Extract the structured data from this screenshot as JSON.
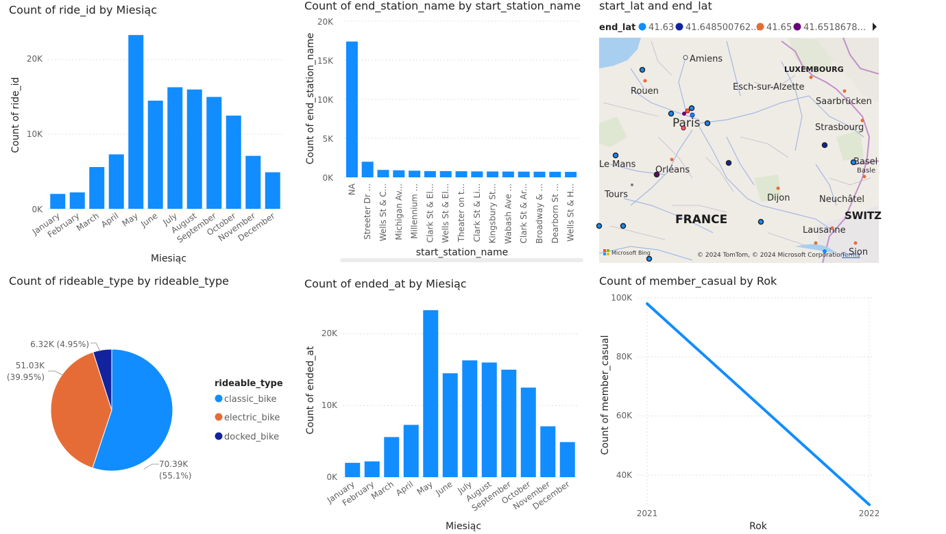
{
  "colors": {
    "bar": "#118DFF",
    "classic": "#118DFF",
    "electric": "#E66C37",
    "docked": "#12239E",
    "purple": "#6B007B",
    "grid": "#e1dfdd"
  },
  "ride_chart": {
    "title": "Count of ride_id by Miesiąc",
    "xlabel": "Miesiąc",
    "ylabel": "Count of ride_id",
    "yticks": [
      "0K",
      "10K",
      "20K"
    ]
  },
  "station_chart": {
    "title": "Count of end_station_name by start_station_name",
    "xlabel": "start_station_name",
    "ylabel": "Count of end_station_name",
    "yticks": [
      "0K",
      "5K",
      "10K",
      "15K",
      "20K"
    ]
  },
  "map": {
    "title": "start_lat and end_lat",
    "legend_title": "end_lat",
    "legend_items": [
      {
        "label": "41.63",
        "color": "#118DFF"
      },
      {
        "label": "41.648500762...",
        "color": "#12239E"
      },
      {
        "label": "41.65",
        "color": "#E66C37"
      },
      {
        "label": "41.6518678...",
        "color": "#6B007B"
      }
    ],
    "places": {
      "amiens": "Amiens",
      "rouen": "Rouen",
      "esch": "Esch-sur-Alzette",
      "luxembourg": "LUXEMBOURG",
      "saarbrucken": "Saarbrücken",
      "paris": "Paris",
      "strasbourg": "Strasbourg",
      "lemans": "Le Mans",
      "orleans": "Orléans",
      "basel": "Basel",
      "basle": "Basle",
      "tours": "Tours",
      "dijon": "Dijon",
      "neuchatel": "Neuchâtel",
      "france": "FRANCE",
      "switz": "SWITZ",
      "lausanne": "Lausanne",
      "sion": "Sion"
    },
    "bing": "Microsoft Bing",
    "copyright": "© 2024 TomTom, © 2024 Microsoft Corporation",
    "terms": "Terms"
  },
  "pie_chart": {
    "title": "Count of rideable_type by rideable_type",
    "legend_title": "rideable_type",
    "labels": {
      "classic_1": "70.39K",
      "classic_2": "(55.1%)",
      "electric_1": "51.03K",
      "electric_2": "(39.95%)",
      "docked": "6.32K (4.95%)"
    }
  },
  "ended_chart": {
    "title": "Count of ended_at by Miesiąc",
    "xlabel": "Miesiąc",
    "ylabel": "Count of ended_at",
    "yticks": [
      "0K",
      "10K",
      "20K"
    ]
  },
  "line_chart": {
    "title": "Count of member_casual by Rok",
    "xlabel": "Rok",
    "ylabel": "Count of member_casual",
    "yticks": [
      "40K",
      "60K",
      "80K",
      "100K"
    ]
  },
  "chart_data": [
    {
      "type": "bar",
      "title": "Count of ride_id by Miesiąc",
      "xlabel": "Miesiąc",
      "ylabel": "Count of ride_id",
      "categories": [
        "January",
        "February",
        "March",
        "April",
        "May",
        "June",
        "July",
        "August",
        "September",
        "October",
        "November",
        "December"
      ],
      "values": [
        2000,
        2200,
        5600,
        7300,
        23300,
        14500,
        16300,
        16000,
        15000,
        12500,
        7100,
        4900
      ],
      "ylim": [
        0,
        23500
      ]
    },
    {
      "type": "bar",
      "title": "Count of end_station_name by start_station_name",
      "xlabel": "start_station_name",
      "ylabel": "Count of end_station_name",
      "categories": [
        "NA",
        "Streeter Dr ...",
        "Wells St & C...",
        "Michigan Av...",
        "Millennium ...",
        "Clark St & El...",
        "Wells St & El...",
        "Theater on t...",
        "Clark St & Li...",
        "Kingsbury St...",
        "Wabash Ave ...",
        "Clark St & Ar...",
        "Broadway & ...",
        "Dearborn St ...",
        "Wells St & H..."
      ],
      "values": [
        17400,
        2000,
        950,
        900,
        850,
        800,
        800,
        780,
        760,
        750,
        740,
        730,
        720,
        710,
        700
      ],
      "ylim": [
        0,
        20000
      ]
    },
    {
      "type": "pie",
      "title": "Count of rideable_type by rideable_type",
      "categories": [
        "classic_bike",
        "electric_bike",
        "docked_bike"
      ],
      "values": [
        70390,
        51030,
        6320
      ],
      "percentages": [
        55.1,
        39.95,
        4.95
      ],
      "legend": "right"
    },
    {
      "type": "bar",
      "title": "Count of ended_at by Miesiąc",
      "xlabel": "Miesiąc",
      "ylabel": "Count of ended_at",
      "categories": [
        "January",
        "February",
        "March",
        "April",
        "May",
        "June",
        "July",
        "August",
        "September",
        "October",
        "November",
        "December"
      ],
      "values": [
        2000,
        2200,
        5600,
        7300,
        23300,
        14500,
        16300,
        16000,
        15000,
        12500,
        7100,
        4900
      ],
      "ylim": [
        0,
        23500
      ]
    },
    {
      "type": "line",
      "title": "Count of member_casual by Rok",
      "xlabel": "Rok",
      "ylabel": "Count of member_casual",
      "x": [
        "2021",
        "2022"
      ],
      "values": [
        98000,
        30000
      ],
      "ylim": [
        30000,
        100000
      ]
    }
  ]
}
